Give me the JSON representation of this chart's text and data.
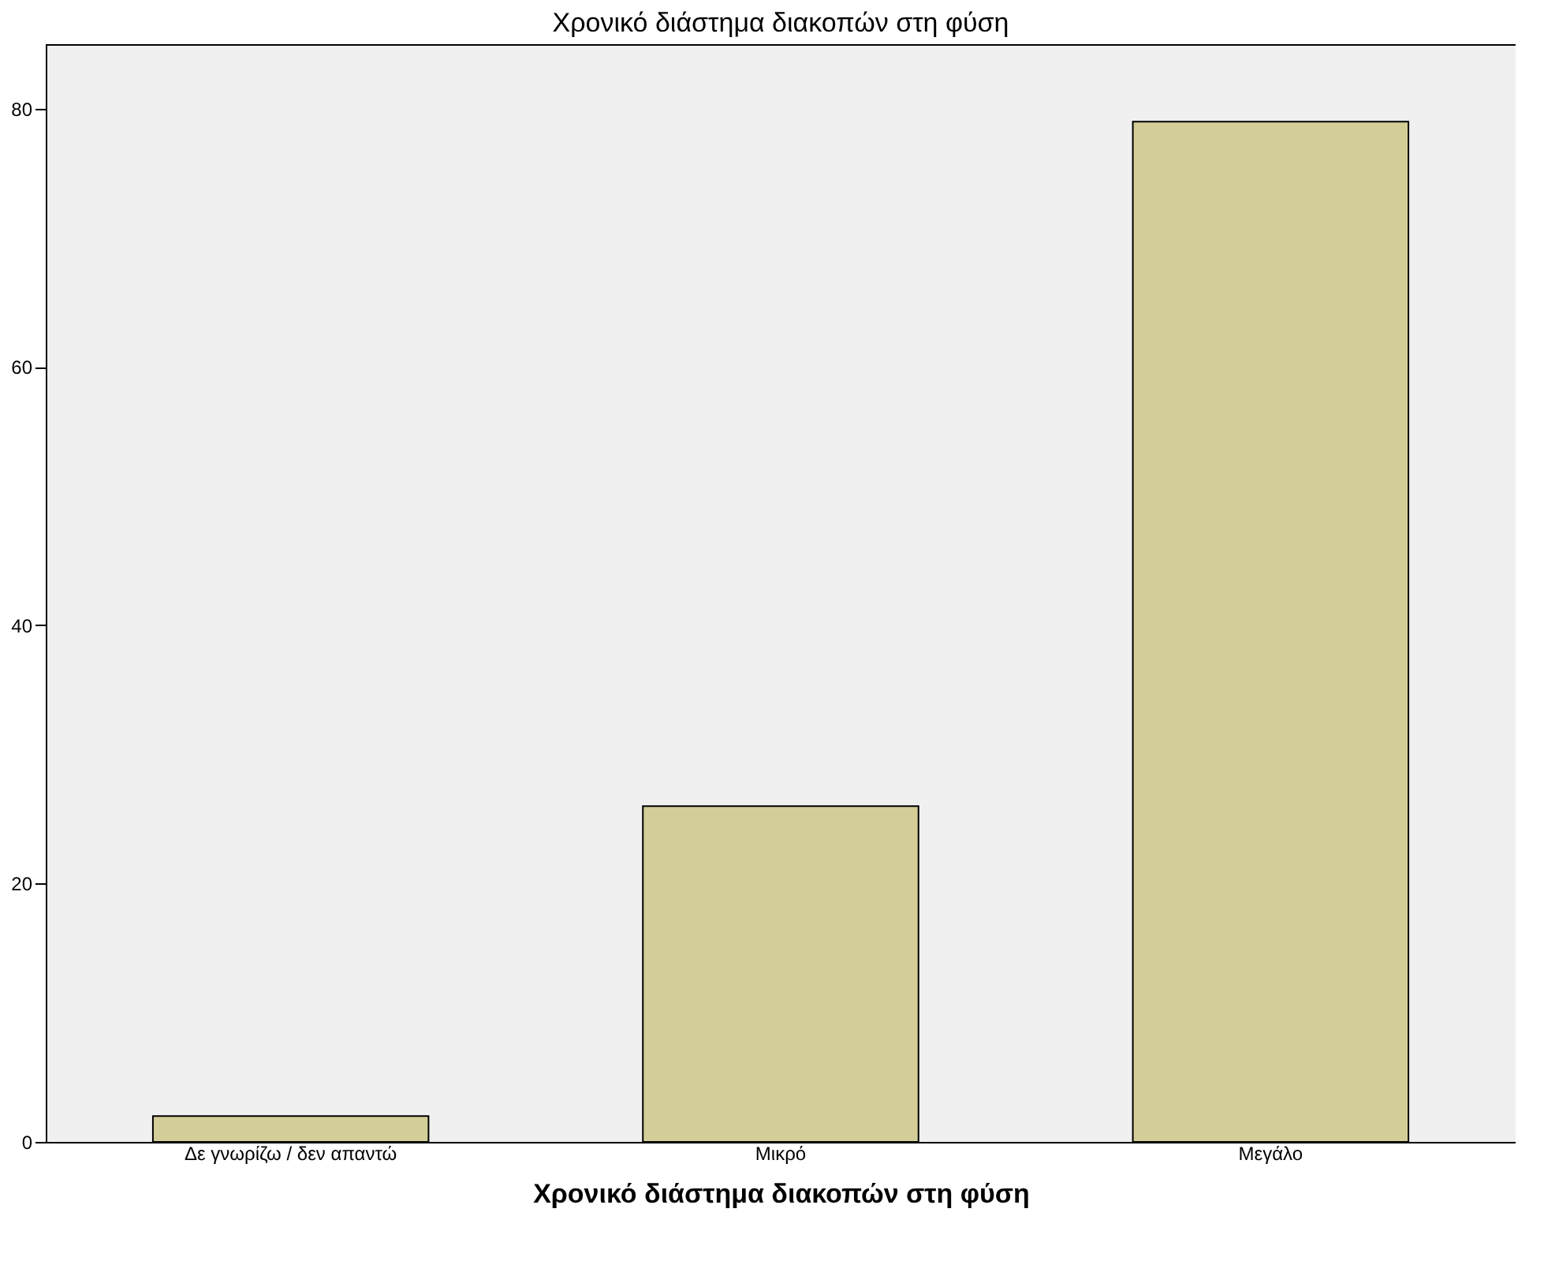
{
  "chart_data": {
    "type": "bar",
    "title": "Χρονικό διάστημα διακοπών στη φύση",
    "xlabel": "Χρονικό διάστημα διακοπών στη φύση",
    "categories": [
      "Δε γνωρίζω / δεν απαντώ",
      "Μικρό",
      "Μεγάλο"
    ],
    "values": [
      2,
      26,
      79
    ],
    "color": "#d3ce97",
    "ylim": [
      0,
      85
    ],
    "yticks": [
      0,
      20,
      40,
      60,
      80
    ],
    "grid": false
  }
}
